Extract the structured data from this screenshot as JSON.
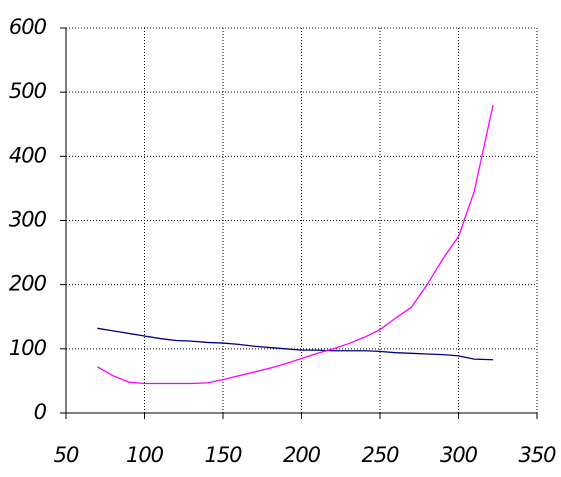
{
  "chart_data": {
    "type": "line",
    "x": [
      70,
      80,
      90,
      100,
      110,
      120,
      130,
      140,
      150,
      160,
      170,
      180,
      190,
      200,
      210,
      220,
      230,
      240,
      250,
      260,
      270,
      280,
      290,
      300,
      310,
      322
    ],
    "series": [
      {
        "color": "#000080",
        "values": [
          132,
          128,
          124,
          120,
          116,
          113,
          112,
          110,
          109,
          107,
          104,
          102,
          100,
          98,
          98,
          97,
          97,
          97,
          96,
          94,
          93,
          92,
          91,
          89,
          84,
          83
        ]
      },
      {
        "color": "#ff00ff",
        "values": [
          72,
          58,
          48,
          46,
          46,
          46,
          46,
          47,
          52,
          58,
          64,
          70,
          77,
          85,
          93,
          100,
          108,
          118,
          130,
          148,
          165,
          200,
          240,
          275,
          345,
          480
        ]
      }
    ],
    "xlim": [
      50,
      350
    ],
    "xticks": [
      50,
      100,
      150,
      200,
      250,
      300,
      350
    ],
    "ylim": [
      0,
      600
    ],
    "yticks": [
      0,
      100,
      200,
      300,
      400,
      500,
      600
    ],
    "grid": true
  }
}
